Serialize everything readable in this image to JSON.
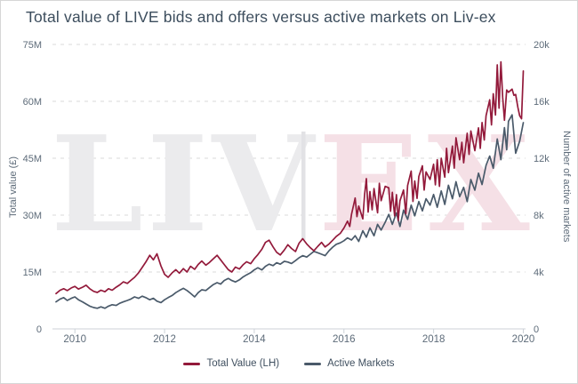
{
  "title": "Total value of LIVE bids and offers versus active markets on Liv-ex",
  "watermark": {
    "left_text": "LIV",
    "right_text": "EX"
  },
  "colors": {
    "title": "#3c4d5d",
    "axis_text": "#5d6b79",
    "grid": "#dadada",
    "axis_line": "#ccd2d7",
    "watermark_gray": "#ebebed",
    "watermark_bar": "#e2e2e5",
    "watermark_pink": "#f5e0e6",
    "background": "#ffffff"
  },
  "chart_data": {
    "type": "line",
    "title": "Total value of LIVE bids and offers versus active markets on Liv-ex",
    "grid": "horizontal dashed",
    "legend_position": "bottom",
    "x_range": [
      2009.5,
      2020.05
    ],
    "x_ticks": {
      "values": [
        2010,
        2012,
        2014,
        2016,
        2018,
        2020
      ],
      "labels": [
        "2010",
        "2012",
        "2014",
        "2016",
        "2018",
        "2020"
      ]
    },
    "left_axis": {
      "label": "Total value (£)",
      "unit": "million GBP",
      "range": [
        0,
        75
      ],
      "tick_values": [
        0,
        15,
        30,
        45,
        60,
        75
      ],
      "tick_labels": [
        "0",
        "15M",
        "30M",
        "45M",
        "60M",
        "75M"
      ]
    },
    "right_axis": {
      "label": "Number of active markets",
      "unit": "thousand markets",
      "range": [
        0,
        20
      ],
      "tick_values": [
        0,
        4,
        8,
        12,
        16,
        20
      ],
      "tick_labels": [
        "0",
        "4k",
        "8k",
        "12k",
        "16k",
        "20k"
      ]
    },
    "series": [
      {
        "name": "Total Value (LH)",
        "axis": "left",
        "color": "#931a3b",
        "points": [
          [
            2009.58,
            9.3
          ],
          [
            2009.67,
            10.2
          ],
          [
            2009.75,
            10.6
          ],
          [
            2009.83,
            10.1
          ],
          [
            2009.92,
            10.8
          ],
          [
            2010.0,
            11.2
          ],
          [
            2010.08,
            10.5
          ],
          [
            2010.17,
            11.0
          ],
          [
            2010.25,
            11.5
          ],
          [
            2010.33,
            10.6
          ],
          [
            2010.42,
            9.9
          ],
          [
            2010.5,
            9.6
          ],
          [
            2010.58,
            10.2
          ],
          [
            2010.67,
            9.8
          ],
          [
            2010.75,
            10.6
          ],
          [
            2010.83,
            10.2
          ],
          [
            2010.92,
            11.0
          ],
          [
            2011.0,
            11.6
          ],
          [
            2011.08,
            12.4
          ],
          [
            2011.17,
            12.0
          ],
          [
            2011.25,
            12.8
          ],
          [
            2011.33,
            13.6
          ],
          [
            2011.42,
            14.8
          ],
          [
            2011.5,
            16.2
          ],
          [
            2011.58,
            17.6
          ],
          [
            2011.67,
            19.4
          ],
          [
            2011.75,
            18.2
          ],
          [
            2011.83,
            19.8
          ],
          [
            2011.92,
            16.6
          ],
          [
            2012.0,
            14.4
          ],
          [
            2012.08,
            13.6
          ],
          [
            2012.17,
            14.8
          ],
          [
            2012.25,
            15.6
          ],
          [
            2012.33,
            14.7
          ],
          [
            2012.42,
            15.9
          ],
          [
            2012.5,
            15.0
          ],
          [
            2012.58,
            16.5
          ],
          [
            2012.67,
            15.7
          ],
          [
            2012.75,
            17.0
          ],
          [
            2012.83,
            17.9
          ],
          [
            2012.92,
            16.8
          ],
          [
            2013.0,
            17.5
          ],
          [
            2013.08,
            18.4
          ],
          [
            2013.17,
            19.4
          ],
          [
            2013.25,
            18.2
          ],
          [
            2013.33,
            17.0
          ],
          [
            2013.42,
            15.6
          ],
          [
            2013.5,
            15.0
          ],
          [
            2013.58,
            16.3
          ],
          [
            2013.67,
            15.8
          ],
          [
            2013.75,
            16.9
          ],
          [
            2013.83,
            17.7
          ],
          [
            2013.92,
            17.2
          ],
          [
            2014.0,
            18.5
          ],
          [
            2014.08,
            19.6
          ],
          [
            2014.17,
            21.0
          ],
          [
            2014.25,
            22.8
          ],
          [
            2014.33,
            23.4
          ],
          [
            2014.42,
            21.6
          ],
          [
            2014.5,
            20.2
          ],
          [
            2014.58,
            19.5
          ],
          [
            2014.67,
            20.8
          ],
          [
            2014.75,
            22.2
          ],
          [
            2014.83,
            21.2
          ],
          [
            2014.92,
            20.4
          ],
          [
            2015.0,
            22.6
          ],
          [
            2015.08,
            23.8
          ],
          [
            2015.17,
            22.4
          ],
          [
            2015.25,
            21.4
          ],
          [
            2015.33,
            20.6
          ],
          [
            2015.42,
            21.8
          ],
          [
            2015.5,
            22.8
          ],
          [
            2015.58,
            21.6
          ],
          [
            2015.67,
            22.4
          ],
          [
            2015.75,
            23.4
          ],
          [
            2015.83,
            24.4
          ],
          [
            2015.92,
            25.2
          ],
          [
            2016.0,
            26.6
          ],
          [
            2016.08,
            28.4
          ],
          [
            2016.13,
            27.0
          ],
          [
            2016.17,
            30.2
          ],
          [
            2016.25,
            34.5
          ],
          [
            2016.29,
            29.6
          ],
          [
            2016.33,
            32.4
          ],
          [
            2016.42,
            29.0
          ],
          [
            2016.46,
            35.4
          ],
          [
            2016.5,
            39.6
          ],
          [
            2016.54,
            30.8
          ],
          [
            2016.58,
            36.2
          ],
          [
            2016.63,
            31.4
          ],
          [
            2016.67,
            37.0
          ],
          [
            2016.75,
            30.6
          ],
          [
            2016.79,
            38.4
          ],
          [
            2016.83,
            33.8
          ],
          [
            2016.92,
            37.6
          ],
          [
            2017.0,
            37.2
          ],
          [
            2017.04,
            31.0
          ],
          [
            2017.08,
            36.0
          ],
          [
            2017.13,
            29.8
          ],
          [
            2017.17,
            35.4
          ],
          [
            2017.21,
            28.6
          ],
          [
            2017.25,
            33.8
          ],
          [
            2017.33,
            36.6
          ],
          [
            2017.38,
            30.4
          ],
          [
            2017.42,
            37.8
          ],
          [
            2017.5,
            41.6
          ],
          [
            2017.54,
            33.6
          ],
          [
            2017.58,
            39.0
          ],
          [
            2017.63,
            34.4
          ],
          [
            2017.67,
            40.2
          ],
          [
            2017.75,
            43.0
          ],
          [
            2017.79,
            36.6
          ],
          [
            2017.83,
            41.4
          ],
          [
            2017.92,
            39.4
          ],
          [
            2018.0,
            43.4
          ],
          [
            2018.04,
            38.0
          ],
          [
            2018.08,
            44.6
          ],
          [
            2018.13,
            37.6
          ],
          [
            2018.17,
            45.0
          ],
          [
            2018.25,
            40.0
          ],
          [
            2018.29,
            47.6
          ],
          [
            2018.33,
            41.2
          ],
          [
            2018.42,
            48.2
          ],
          [
            2018.46,
            42.4
          ],
          [
            2018.5,
            50.4
          ],
          [
            2018.58,
            44.6
          ],
          [
            2018.63,
            49.2
          ],
          [
            2018.67,
            43.8
          ],
          [
            2018.75,
            51.6
          ],
          [
            2018.79,
            46.0
          ],
          [
            2018.83,
            52.2
          ],
          [
            2018.92,
            47.0
          ],
          [
            2019.0,
            53.0
          ],
          [
            2019.04,
            47.6
          ],
          [
            2019.08,
            54.4
          ],
          [
            2019.13,
            49.8
          ],
          [
            2019.17,
            56.2
          ],
          [
            2019.25,
            60.4
          ],
          [
            2019.29,
            53.8
          ],
          [
            2019.33,
            62.0
          ],
          [
            2019.38,
            56.4
          ],
          [
            2019.42,
            69.6
          ],
          [
            2019.46,
            58.2
          ],
          [
            2019.5,
            70.4
          ],
          [
            2019.54,
            61.0
          ],
          [
            2019.58,
            55.0
          ],
          [
            2019.63,
            63.0
          ],
          [
            2019.67,
            62.4
          ],
          [
            2019.75,
            63.2
          ],
          [
            2019.79,
            61.6
          ],
          [
            2019.83,
            61.8
          ],
          [
            2019.88,
            58.4
          ],
          [
            2019.92,
            56.2
          ],
          [
            2019.96,
            55.4
          ],
          [
            2020.0,
            68.0
          ]
        ]
      },
      {
        "name": "Active Markets",
        "axis": "right",
        "color": "#4a5a6a",
        "points": [
          [
            2009.58,
            1.9
          ],
          [
            2009.67,
            2.1
          ],
          [
            2009.75,
            2.2
          ],
          [
            2009.83,
            2.0
          ],
          [
            2009.92,
            2.15
          ],
          [
            2010.0,
            2.25
          ],
          [
            2010.08,
            2.05
          ],
          [
            2010.17,
            1.9
          ],
          [
            2010.25,
            1.75
          ],
          [
            2010.33,
            1.6
          ],
          [
            2010.42,
            1.5
          ],
          [
            2010.5,
            1.45
          ],
          [
            2010.58,
            1.55
          ],
          [
            2010.67,
            1.45
          ],
          [
            2010.75,
            1.6
          ],
          [
            2010.83,
            1.7
          ],
          [
            2010.92,
            1.65
          ],
          [
            2011.0,
            1.8
          ],
          [
            2011.08,
            1.9
          ],
          [
            2011.17,
            2.0
          ],
          [
            2011.25,
            2.1
          ],
          [
            2011.33,
            2.25
          ],
          [
            2011.42,
            2.15
          ],
          [
            2011.5,
            2.3
          ],
          [
            2011.58,
            2.2
          ],
          [
            2011.67,
            2.05
          ],
          [
            2011.75,
            2.15
          ],
          [
            2011.83,
            1.95
          ],
          [
            2011.92,
            1.85
          ],
          [
            2012.0,
            2.05
          ],
          [
            2012.08,
            2.2
          ],
          [
            2012.17,
            2.35
          ],
          [
            2012.25,
            2.55
          ],
          [
            2012.33,
            2.7
          ],
          [
            2012.42,
            2.85
          ],
          [
            2012.5,
            2.7
          ],
          [
            2012.58,
            2.5
          ],
          [
            2012.67,
            2.25
          ],
          [
            2012.75,
            2.55
          ],
          [
            2012.83,
            2.75
          ],
          [
            2012.92,
            2.7
          ],
          [
            2013.0,
            2.9
          ],
          [
            2013.08,
            3.1
          ],
          [
            2013.17,
            3.25
          ],
          [
            2013.25,
            3.15
          ],
          [
            2013.33,
            3.4
          ],
          [
            2013.42,
            3.55
          ],
          [
            2013.5,
            3.4
          ],
          [
            2013.58,
            3.3
          ],
          [
            2013.67,
            3.45
          ],
          [
            2013.75,
            3.65
          ],
          [
            2013.83,
            3.8
          ],
          [
            2013.92,
            3.95
          ],
          [
            2014.0,
            4.15
          ],
          [
            2014.08,
            4.3
          ],
          [
            2014.17,
            4.15
          ],
          [
            2014.25,
            4.4
          ],
          [
            2014.33,
            4.55
          ],
          [
            2014.42,
            4.45
          ],
          [
            2014.5,
            4.65
          ],
          [
            2014.58,
            4.55
          ],
          [
            2014.67,
            4.75
          ],
          [
            2014.75,
            4.7
          ],
          [
            2014.83,
            4.6
          ],
          [
            2014.92,
            4.8
          ],
          [
            2015.0,
            5.0
          ],
          [
            2015.08,
            5.15
          ],
          [
            2015.17,
            5.05
          ],
          [
            2015.25,
            5.25
          ],
          [
            2015.33,
            5.45
          ],
          [
            2015.42,
            5.35
          ],
          [
            2015.5,
            5.25
          ],
          [
            2015.58,
            5.15
          ],
          [
            2015.67,
            5.5
          ],
          [
            2015.75,
            5.75
          ],
          [
            2015.83,
            5.95
          ],
          [
            2015.92,
            6.05
          ],
          [
            2016.0,
            6.2
          ],
          [
            2016.08,
            6.4
          ],
          [
            2016.17,
            6.25
          ],
          [
            2016.25,
            6.55
          ],
          [
            2016.33,
            6.15
          ],
          [
            2016.42,
            6.9
          ],
          [
            2016.5,
            6.45
          ],
          [
            2016.58,
            7.1
          ],
          [
            2016.67,
            6.55
          ],
          [
            2016.75,
            7.35
          ],
          [
            2016.83,
            6.95
          ],
          [
            2016.92,
            7.5
          ],
          [
            2017.0,
            8.05
          ],
          [
            2017.08,
            7.35
          ],
          [
            2017.17,
            8.15
          ],
          [
            2017.25,
            7.2
          ],
          [
            2017.33,
            8.35
          ],
          [
            2017.42,
            7.7
          ],
          [
            2017.5,
            8.7
          ],
          [
            2017.58,
            7.95
          ],
          [
            2017.67,
            8.95
          ],
          [
            2017.75,
            8.3
          ],
          [
            2017.83,
            9.15
          ],
          [
            2017.92,
            8.7
          ],
          [
            2018.0,
            9.45
          ],
          [
            2018.08,
            8.55
          ],
          [
            2018.17,
            9.7
          ],
          [
            2018.25,
            8.75
          ],
          [
            2018.33,
            10.1
          ],
          [
            2018.42,
            9.15
          ],
          [
            2018.5,
            10.35
          ],
          [
            2018.58,
            9.3
          ],
          [
            2018.67,
            9.95
          ],
          [
            2018.75,
            8.95
          ],
          [
            2018.83,
            10.5
          ],
          [
            2018.92,
            9.75
          ],
          [
            2019.0,
            10.95
          ],
          [
            2019.08,
            10.15
          ],
          [
            2019.17,
            11.5
          ],
          [
            2019.25,
            12.15
          ],
          [
            2019.33,
            11.3
          ],
          [
            2019.42,
            13.35
          ],
          [
            2019.5,
            11.9
          ],
          [
            2019.58,
            14.15
          ],
          [
            2019.63,
            12.6
          ],
          [
            2019.67,
            14.6
          ],
          [
            2019.75,
            15.05
          ],
          [
            2019.83,
            12.35
          ],
          [
            2019.92,
            13.2
          ],
          [
            2020.0,
            14.5
          ]
        ]
      }
    ]
  },
  "legend": {
    "items": [
      {
        "label": "Total Value (LH)",
        "color": "#931a3b"
      },
      {
        "label": "Active Markets",
        "color": "#4a5a6a"
      }
    ]
  }
}
